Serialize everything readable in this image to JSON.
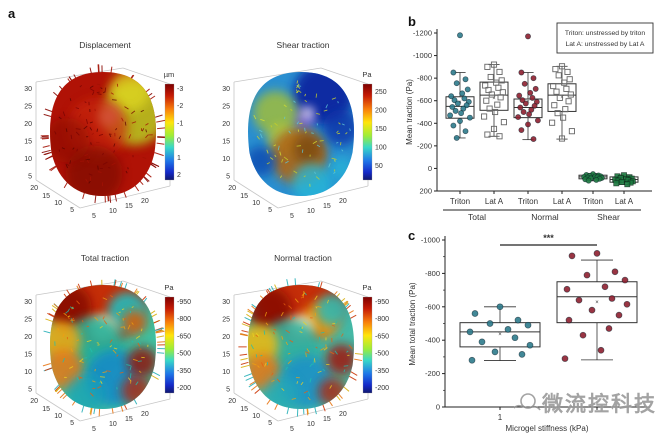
{
  "panels": {
    "a": {
      "label": "a",
      "subplots": [
        {
          "id": "displacement",
          "title": "Displacement",
          "colorbar": {
            "label": "µm",
            "ticks": [
              "-3",
              "-2",
              "-1",
              "0",
              "1",
              "2"
            ]
          },
          "z_ticks": [
            "30",
            "25",
            "20",
            "15",
            "10",
            "5"
          ],
          "x_ticks": [
            "20",
            "15",
            "10",
            "5"
          ],
          "y_ticks": [
            "5",
            "10",
            "15",
            "20"
          ]
        },
        {
          "id": "shear-traction",
          "title": "Shear traction",
          "colorbar": {
            "label": "Pa",
            "ticks": [
              "250",
              "200",
              "150",
              "100",
              "50"
            ]
          },
          "z_ticks": [
            "30",
            "25",
            "20",
            "15",
            "10",
            "5"
          ],
          "x_ticks": [
            "20",
            "15",
            "10",
            "5"
          ],
          "y_ticks": [
            "5",
            "10",
            "15",
            "20"
          ]
        },
        {
          "id": "total-traction",
          "title": "Total traction",
          "colorbar": {
            "label": "Pa",
            "ticks": [
              "-950",
              "-800",
              "-650",
              "-500",
              "-350",
              "-200"
            ]
          },
          "z_ticks": [
            "30",
            "25",
            "20",
            "15",
            "10",
            "5"
          ],
          "x_ticks": [
            "20",
            "15",
            "10",
            "5"
          ],
          "y_ticks": [
            "5",
            "10",
            "15",
            "20"
          ]
        },
        {
          "id": "normal-traction",
          "title": "Normal traction",
          "colorbar": {
            "label": "Pa",
            "ticks": [
              "-950",
              "-800",
              "-650",
              "-500",
              "-350",
              "-200"
            ]
          },
          "z_ticks": [
            "30",
            "25",
            "20",
            "15",
            "10",
            "5"
          ],
          "x_ticks": [
            "20",
            "15",
            "10",
            "5"
          ],
          "y_ticks": [
            "5",
            "10",
            "15",
            "20"
          ]
        }
      ]
    },
    "b": {
      "label": "b"
    },
    "c": {
      "label": "c"
    }
  },
  "watermark": {
    "text": "微流控科技"
  },
  "chart_data": [
    {
      "type": "box",
      "panel": "b",
      "ylabel": "Mean traction (Pa)",
      "ylim": [
        -1200,
        200
      ],
      "axis_note": "y axis reversed, negative values upward",
      "yticks": [
        -1200,
        -1000,
        -800,
        -600,
        -400,
        -200,
        0,
        200
      ],
      "legend": [
        "Triton: unstressed by triton",
        "Lat A: unstressed by Lat A"
      ],
      "legend_position": "top-right",
      "group_labels": [
        "Total",
        "Normal",
        "Shear"
      ],
      "series": [
        {
          "group": "Total",
          "label": "Triton",
          "marker": "circle",
          "color": "#2e7b8c",
          "box": {
            "q1": -445,
            "median": -550,
            "q3": -635,
            "whisker_lo": -270,
            "whisker_hi": -850
          },
          "points": [
            -1180,
            -850,
            -790,
            -755,
            -700,
            -665,
            -640,
            -620,
            -605,
            -590,
            -575,
            -560,
            -545,
            -530,
            -510,
            -490,
            -470,
            -450,
            -420,
            -380,
            -330,
            -270
          ]
        },
        {
          "group": "Total",
          "label": "Lat A",
          "marker": "square-open",
          "color": "#666666",
          "box": {
            "q1": -515,
            "median": -650,
            "q3": -765,
            "whisker_lo": -285,
            "whisker_hi": -920
          },
          "points": [
            -920,
            -900,
            -855,
            -810,
            -780,
            -760,
            -735,
            -715,
            -695,
            -675,
            -655,
            -630,
            -600,
            -565,
            -530,
            -500,
            -460,
            -410,
            -350,
            -300,
            -285
          ]
        },
        {
          "group": "Normal",
          "label": "Triton",
          "marker": "circle",
          "color": "#8e1f2f",
          "box": {
            "q1": -450,
            "median": -540,
            "q3": -615,
            "whisker_lo": -255,
            "whisker_hi": -850
          },
          "points": [
            -1170,
            -850,
            -800,
            -750,
            -705,
            -670,
            -645,
            -625,
            -605,
            -590,
            -575,
            -555,
            -540,
            -520,
            -500,
            -480,
            -455,
            -425,
            -390,
            -340,
            -260
          ]
        },
        {
          "group": "Normal",
          "label": "Lat A",
          "marker": "square-open",
          "color": "#666666",
          "box": {
            "q1": -505,
            "median": -650,
            "q3": -750,
            "whisker_lo": -260,
            "whisker_hi": -905
          },
          "points": [
            -905,
            -880,
            -855,
            -825,
            -790,
            -760,
            -730,
            -705,
            -680,
            -655,
            -625,
            -595,
            -560,
            -525,
            -490,
            -450,
            -405,
            -330,
            -265
          ]
        },
        {
          "group": "Shear",
          "label": "Triton",
          "marker": "circle",
          "color": "#1d7a40",
          "box": {
            "q1": 60,
            "median": 75,
            "q3": 92,
            "whisker_lo": 45,
            "whisker_hi": 110
          },
          "points": [
            50,
            58,
            62,
            66,
            70,
            72,
            75,
            78,
            80,
            84,
            88,
            92,
            96,
            102,
            108
          ]
        },
        {
          "group": "Shear",
          "label": "Lat A",
          "marker": "square",
          "color": "#1d7a40",
          "box": {
            "q1": 75,
            "median": 98,
            "q3": 122,
            "whisker_lo": 58,
            "whisker_hi": 142
          },
          "points": [
            60,
            70,
            78,
            85,
            90,
            95,
            100,
            104,
            108,
            114,
            120,
            126,
            132,
            140
          ]
        }
      ]
    },
    {
      "type": "box",
      "panel": "c",
      "xlabel": "Microgel stiffness (kPa)",
      "ylabel": "Mean total traction (Pa)",
      "ylim": [
        -1000,
        0
      ],
      "axis_note": "y axis reversed, negative values upward",
      "yticks": [
        -1000,
        -800,
        -600,
        -400,
        -200,
        0
      ],
      "significance": "***",
      "series": [
        {
          "label": "1",
          "marker": "circle",
          "color": "#2e7b8c",
          "box": {
            "q1": -360,
            "median": -450,
            "q3": -505,
            "whisker_lo": -278,
            "whisker_hi": -600
          },
          "points": [
            -600,
            -560,
            -520,
            -500,
            -490,
            -465,
            -450,
            -415,
            -390,
            -370,
            -330,
            -315,
            -280
          ]
        },
        {
          "label": "",
          "marker": "circle",
          "color": "#8e1f2f",
          "box": {
            "q1": -505,
            "median": -660,
            "q3": -750,
            "whisker_lo": -282,
            "whisker_hi": -880
          },
          "points": [
            -920,
            -905,
            -810,
            -790,
            -760,
            -720,
            -705,
            -650,
            -640,
            -615,
            -580,
            -550,
            -520,
            -470,
            -430,
            -340,
            -290
          ]
        }
      ]
    }
  ]
}
